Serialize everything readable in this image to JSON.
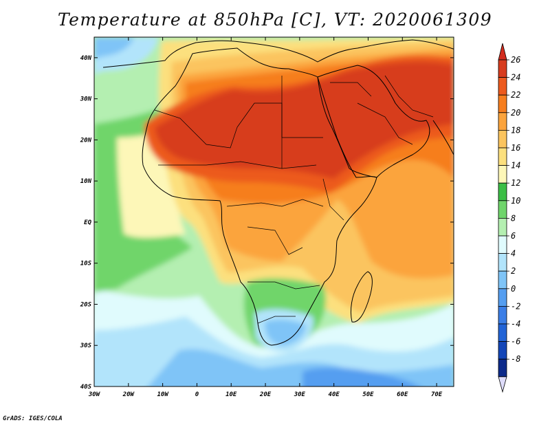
{
  "title": "Temperature at 850hPa [C], VT: 2020061309",
  "credit": "GrADS: IGES/COLA",
  "lon_ticks": [
    {
      "value": -30,
      "label": "30W"
    },
    {
      "value": -20,
      "label": "20W"
    },
    {
      "value": -10,
      "label": "10W"
    },
    {
      "value": 0,
      "label": "0"
    },
    {
      "value": 10,
      "label": "10E"
    },
    {
      "value": 20,
      "label": "20E"
    },
    {
      "value": 30,
      "label": "30E"
    },
    {
      "value": 40,
      "label": "40E"
    },
    {
      "value": 50,
      "label": "50E"
    },
    {
      "value": 60,
      "label": "60E"
    },
    {
      "value": 70,
      "label": "70E"
    }
  ],
  "lat_ticks": [
    {
      "value": 40,
      "label": "40N"
    },
    {
      "value": 30,
      "label": "30N"
    },
    {
      "value": 20,
      "label": "20N"
    },
    {
      "value": 10,
      "label": "10N"
    },
    {
      "value": 0,
      "label": "EQ"
    },
    {
      "value": -10,
      "label": "10S"
    },
    {
      "value": -20,
      "label": "20S"
    },
    {
      "value": -30,
      "label": "30S"
    },
    {
      "value": -40,
      "label": "40S"
    }
  ],
  "extent": {
    "lon": [
      -30,
      75
    ],
    "lat": [
      -40,
      45
    ]
  },
  "colorbar": {
    "levels": [
      {
        "label": "26",
        "color": "#d73c1e"
      },
      {
        "label": "24",
        "color": "#ec5a1e"
      },
      {
        "label": "22",
        "color": "#f67e1f"
      },
      {
        "label": "20",
        "color": "#fba43d"
      },
      {
        "label": "18",
        "color": "#fbc45e"
      },
      {
        "label": "16",
        "color": "#fce07e"
      },
      {
        "label": "14",
        "color": "#fdf7b8"
      },
      {
        "label": "12",
        "color": "#3cbe46"
      },
      {
        "label": "10",
        "color": "#6fd56b"
      },
      {
        "label": "8",
        "color": "#b4efb1"
      },
      {
        "label": "6",
        "color": "#e0fbfd"
      },
      {
        "label": "4",
        "color": "#b2e4fb"
      },
      {
        "label": "2",
        "color": "#7fc4f7"
      },
      {
        "label": "0",
        "color": "#559ef0"
      },
      {
        "label": "-2",
        "color": "#3b7ee6"
      },
      {
        "label": "-4",
        "color": "#2264d6"
      },
      {
        "label": "-6",
        "color": "#1346b8"
      },
      {
        "label": "-8",
        "color": "#0c2a8a"
      }
    ],
    "over_color": "#d22c1e",
    "under_color": "#dedcfa"
  }
}
